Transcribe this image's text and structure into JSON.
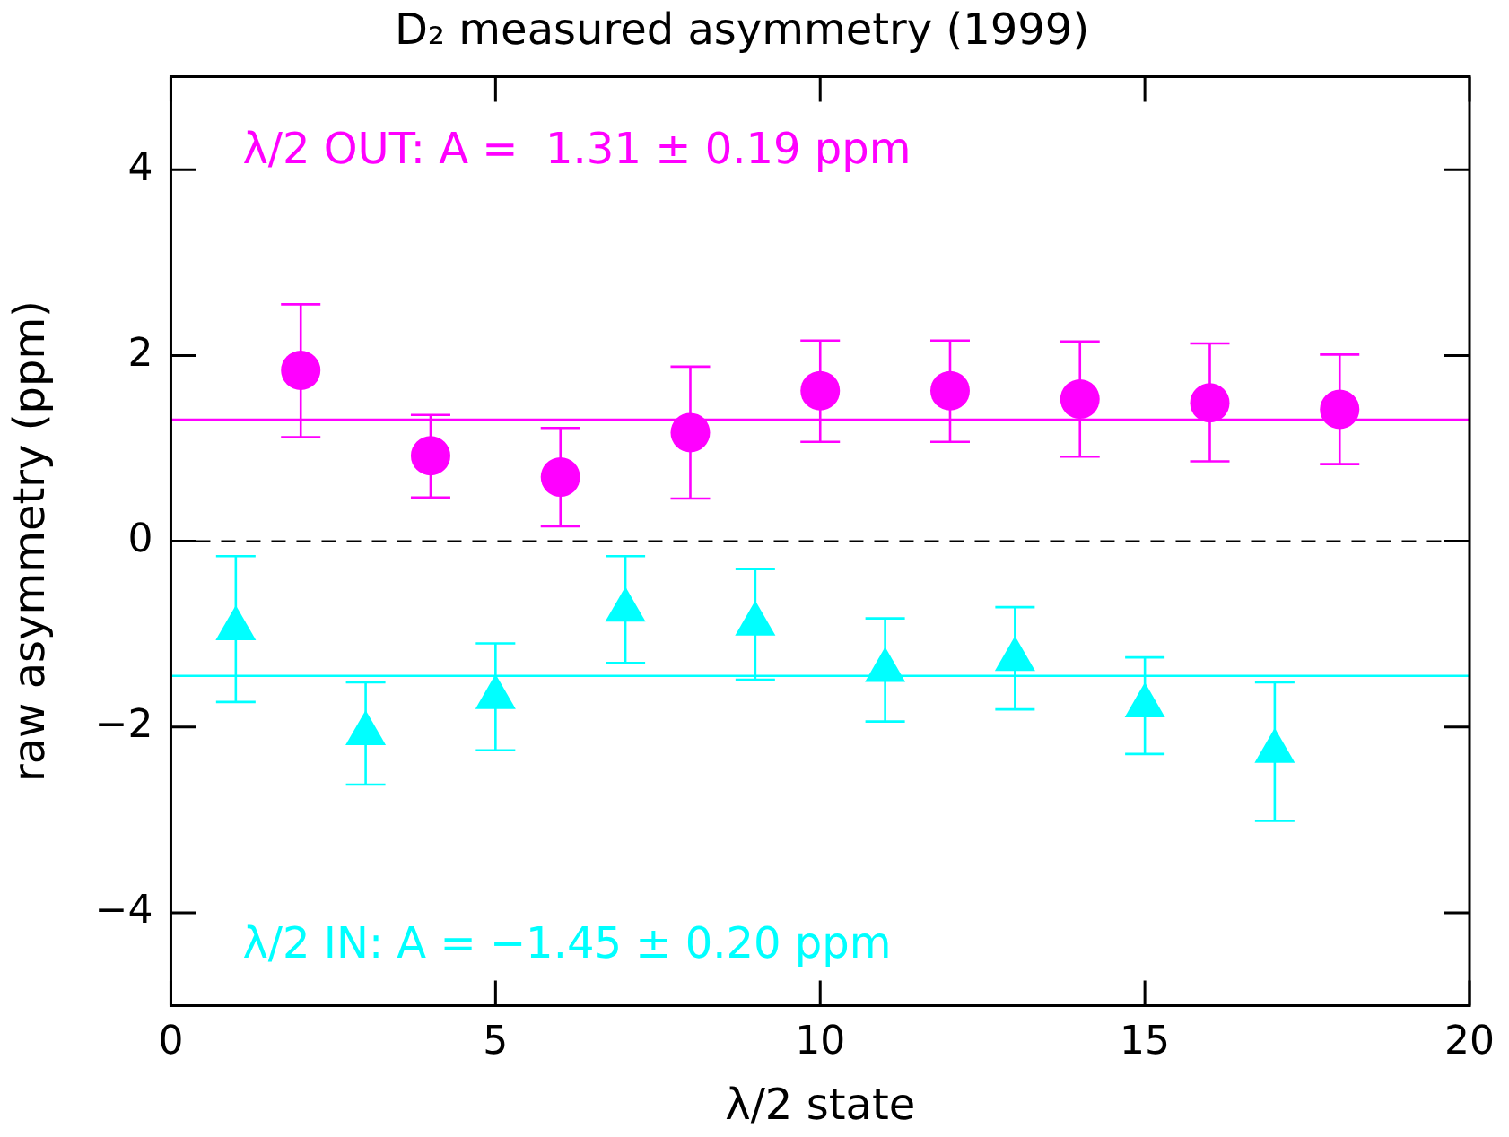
{
  "chart_data": {
    "type": "scatter",
    "title": "D₂ measured asymmetry (1999)",
    "xlabel": "λ/2 state",
    "ylabel": "raw asymmetry (ppm)",
    "xlim": [
      0,
      20
    ],
    "xticks": [
      0,
      5,
      10,
      15,
      20
    ],
    "ylim": [
      -5,
      5
    ],
    "yticks": [
      {
        "value": -4,
        "label": "−4"
      },
      {
        "value": -2,
        "label": "−2"
      },
      0,
      2,
      4
    ],
    "grid": false,
    "legend": false,
    "series": [
      {
        "color": "#ff00ff",
        "marker": "circle",
        "x": [
          2,
          4,
          6,
          8,
          10,
          12,
          14,
          16,
          18
        ],
        "values": [
          1.84,
          0.92,
          0.69,
          1.17,
          1.62,
          1.62,
          1.53,
          1.49,
          1.42
        ],
        "errors": [
          [
            1.12,
            2.55
          ],
          [
            0.47,
            1.36
          ],
          [
            0.16,
            1.22
          ],
          [
            0.46,
            1.88
          ],
          [
            1.07,
            2.16
          ],
          [
            1.07,
            2.16
          ],
          [
            0.91,
            2.15
          ],
          [
            0.86,
            2.13
          ],
          [
            0.83,
            2.01
          ]
        ]
      },
      {
        "color": "#00ffff",
        "marker": "triangle",
        "x": [
          1,
          3,
          5,
          7,
          9,
          11,
          13,
          15,
          17
        ],
        "values": [
          -0.94,
          -2.07,
          -1.68,
          -0.74,
          -0.89,
          -1.39,
          -1.27,
          -1.77,
          -2.26
        ],
        "errors": [
          [
            -1.73,
            -0.16
          ],
          [
            -2.62,
            -1.52
          ],
          [
            -2.25,
            -1.1
          ],
          [
            -1.31,
            -0.16
          ],
          [
            -1.49,
            -0.3
          ],
          [
            -1.94,
            -0.83
          ],
          [
            -1.81,
            -0.71
          ],
          [
            -2.29,
            -1.25
          ],
          [
            -3.01,
            -1.52
          ]
        ]
      }
    ],
    "ref_lines": [
      {
        "axis": "y",
        "value": 1.31,
        "color": "#ff00ff",
        "line_style": "solid",
        "label": "λ/2 OUT: A =  1.31 ± 0.19 ppm"
      },
      {
        "axis": "y",
        "value": -1.45,
        "color": "#00ffff",
        "line_style": "solid",
        "label": "λ/2 IN: A = −1.45 ± 0.20 ppm"
      },
      {
        "axis": "y",
        "value": 0,
        "color": "#000000",
        "line_style": "dashed"
      }
    ]
  }
}
